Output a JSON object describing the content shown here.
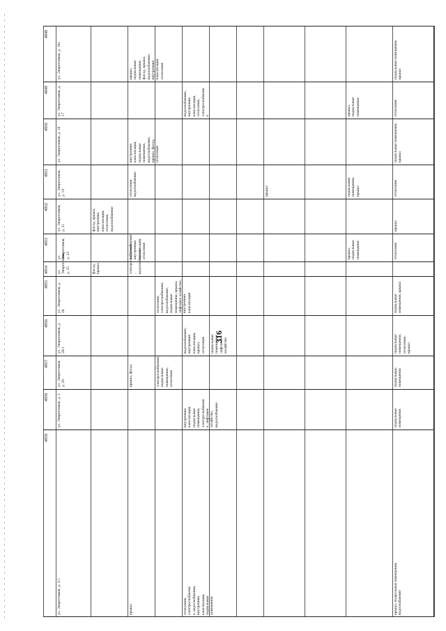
{
  "page_number": "316",
  "rows": [
    {
      "num": "4948",
      "address": "ул. Энергетиков, д. 16а",
      "c1": "",
      "c2": "крыша\nподвальные\nпомещения,\nфасад, крыша,\nводоснабжение,\nвнутренняя\nканализация,\nотопление",
      "c3": "",
      "c4": "",
      "c5": "",
      "c6": "",
      "c7": "",
      "c8": "",
      "c9": "",
      "c10": "подвальные помещения, крыша"
    },
    {
      "num": "4949",
      "address": "ул. Энергетиков, д. 17",
      "c1": "",
      "c2": "",
      "c3": "",
      "c4": "водоснабжение,\nвнутренняя\nканализация,\nотопление,\nэлектроснабжени\nе",
      "c5": "",
      "c6": "",
      "c7": "",
      "c8": "",
      "c9": "крыша,\nподвальные\nпомещения",
      "c10": "отопление"
    },
    {
      "num": "4950",
      "address": "ул. Энергетиков, д. 18",
      "c1": "",
      "c2": "внутренняя\nканализация,\nподвальные\nпомещения,\nводоснабжение,\nкрыша, фасад,\nотопление",
      "c3": "",
      "c4": "",
      "c5": "",
      "c6": "",
      "c7": "",
      "c8": "",
      "c9": "",
      "c10": "подвальные помещения, крыша"
    },
    {
      "num": "4951",
      "address": "ул. Энергетиков, д. 19",
      "c1": "",
      "c2": "отопление,\nводоснабжение",
      "c3": "",
      "c4": "",
      "c5": "",
      "c6": "",
      "c7": "крыша",
      "c8": "",
      "c9": "подвальные\nпомещения,\nкрыша",
      "c10": "отопление"
    },
    {
      "num": "4952",
      "address": "ул. Энергетиков, д. 21",
      "c1": "фасад, крыша,\nвнутренняя\nканализация,\nотопление,\nводоснабжение",
      "c2": "",
      "c3": "",
      "c4": "",
      "c5": "",
      "c6": "",
      "c7": "",
      "c8": "",
      "c9": "",
      "c10": "крыша"
    },
    {
      "num": "4953",
      "address": "ул. Энергетиков, д. 23",
      "c1": "",
      "c2": "водоснабжение,\nвнутренняя\nканализация,\nотопление",
      "c3": "",
      "c4": "",
      "c5": "",
      "c6": "",
      "c7": "",
      "c8": "",
      "c9": "крыша,\nподвальные\nпомещения",
      "c10": "отопление"
    },
    {
      "num": "4954",
      "address": "ул. Энергетиков, д. 25",
      "c1": "фасад, крыша",
      "c2": "электроснабжение\n, водоснабжение",
      "c3": "",
      "c4": "",
      "c5": "",
      "c6": "",
      "c7": "",
      "c8": "",
      "c9": "",
      "c10": ""
    },
    {
      "num": "4955",
      "address": "ул. Энергетиков, д. 26",
      "c1": "",
      "c2": "",
      "c3": "отопление,\nэлектроснабжение,\nводоснабжение,\nподвальные\nпомещения, крыша,\nлифтовое хозяйство,\nвнутренняя\nканализация",
      "c4": "",
      "c5": "",
      "c6": "",
      "c7": "",
      "c8": "",
      "c9": "",
      "c10": "подвальные помещения, крыша"
    },
    {
      "num": "4956",
      "address": "ул. Энергетиков, д. 26/1",
      "c1": "",
      "c2": "",
      "c3": "",
      "c4": "водоснабжение,\nвнутренняя\nканализация,\nкрыша,\nотопление",
      "c5": "подвальные\nпомещения,\nлифтовое\nхозяйство",
      "c6": "",
      "c7": "",
      "c8": "",
      "c9": "",
      "c10": "подвальные помещения, отопление,\nкрыша"
    },
    {
      "num": "4957",
      "address": "ул. Энергетиков, д. 29",
      "c1": "",
      "c2": "крыша, фасад",
      "c3": "электроснабжение,\nподвальные\nпомещения,\nотопление",
      "c4": "",
      "c5": "",
      "c6": "",
      "c7": "",
      "c8": "",
      "c9": "",
      "c10": "подвальные помещения"
    },
    {
      "num": "4958",
      "address": "ул. Энергетиков, д. 3",
      "c1": "",
      "c2": "",
      "c3": "",
      "c4": "внутренняя\nканализация,\nподвальные\nпомещения,\nэлектроснабжени\nе, лифтовое\nхозяйство,\nводоснабжение",
      "c5": "",
      "c6": "",
      "c7": "",
      "c8": "",
      "c9": "",
      "c10": "подвальные помещения"
    },
    {
      "num": "4959",
      "address": "ул. Энергетиков, д. 3/1",
      "c1": "",
      "c2": "крыша",
      "c3": "",
      "c4": "отопление,\nэлектроснабжени\nе, водоснабжение,\nвнутренняя\nканализация,\nподвальные\nпомещения",
      "c5": "",
      "c6": "",
      "c7": "",
      "c8": "",
      "c9": "",
      "c10": "крыша, подвальные помещения,\nводоснабжение"
    }
  ]
}
